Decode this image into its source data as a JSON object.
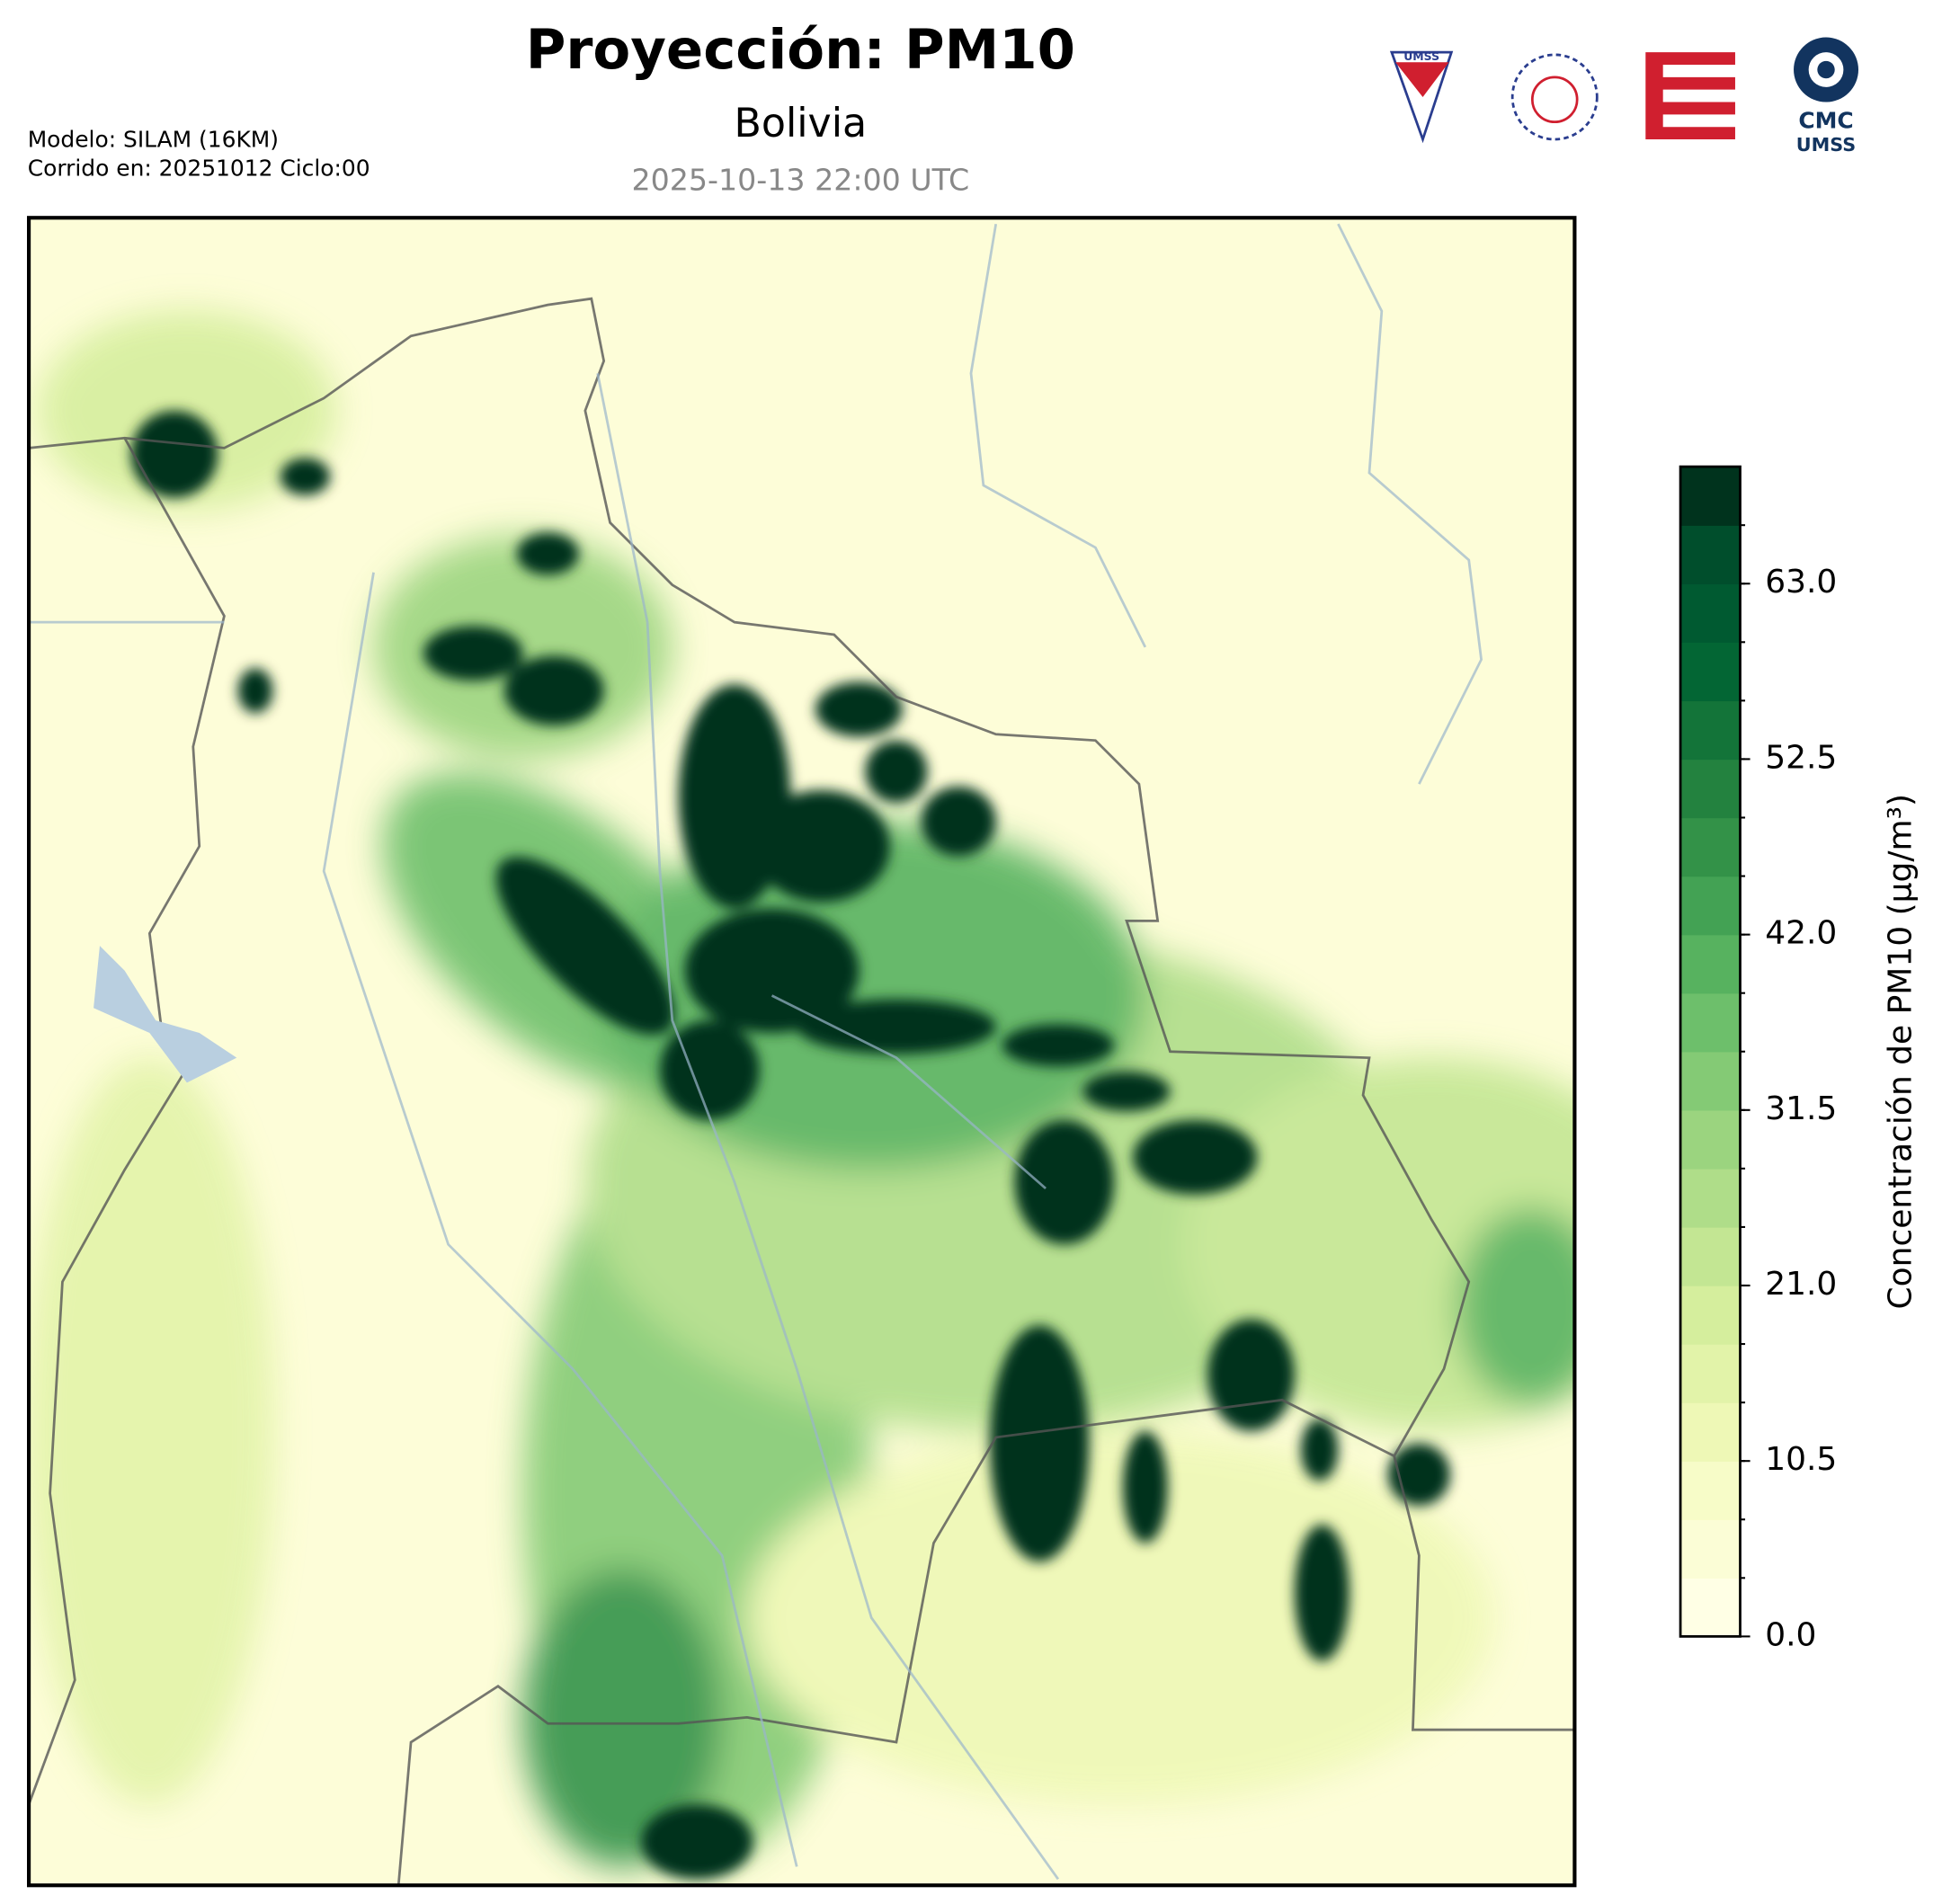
{
  "header": {
    "title": "Proyección: PM10",
    "subtitle": "Bolivia",
    "timestamp": "2025-10-13 22:00 UTC",
    "model": "Modelo: SILAM (16KM)",
    "run": "Corrido en: 20251012 Ciclo:00"
  },
  "logos": {
    "umss_top": "UMSS",
    "cmc": "CMC",
    "cmc_sub": "UMSS"
  },
  "colorbar": {
    "label": "Concentración de PM10 (μg/m³)",
    "lim": [
      0,
      70
    ],
    "ticks": [
      {
        "value": 0,
        "label": "0.0"
      },
      {
        "value": 10.5,
        "label": "10.5"
      },
      {
        "value": 21,
        "label": "21.0"
      },
      {
        "value": 31.5,
        "label": "31.5"
      },
      {
        "value": 42,
        "label": "42.0"
      },
      {
        "value": 52.5,
        "label": "52.5"
      },
      {
        "value": 63,
        "label": "63.0"
      }
    ],
    "colors": [
      "#ffffe5",
      "#fbfdd6",
      "#f7fcc8",
      "#eef8b6",
      "#e2f3a9",
      "#d5ee9d",
      "#c3e693",
      "#afdd89",
      "#9bd47f",
      "#84ca75",
      "#6dbf6b",
      "#57b25f",
      "#43a254",
      "#339248",
      "#23823f",
      "#137439",
      "#036634",
      "#005a31",
      "#004e2c",
      "#00331d"
    ]
  }
}
